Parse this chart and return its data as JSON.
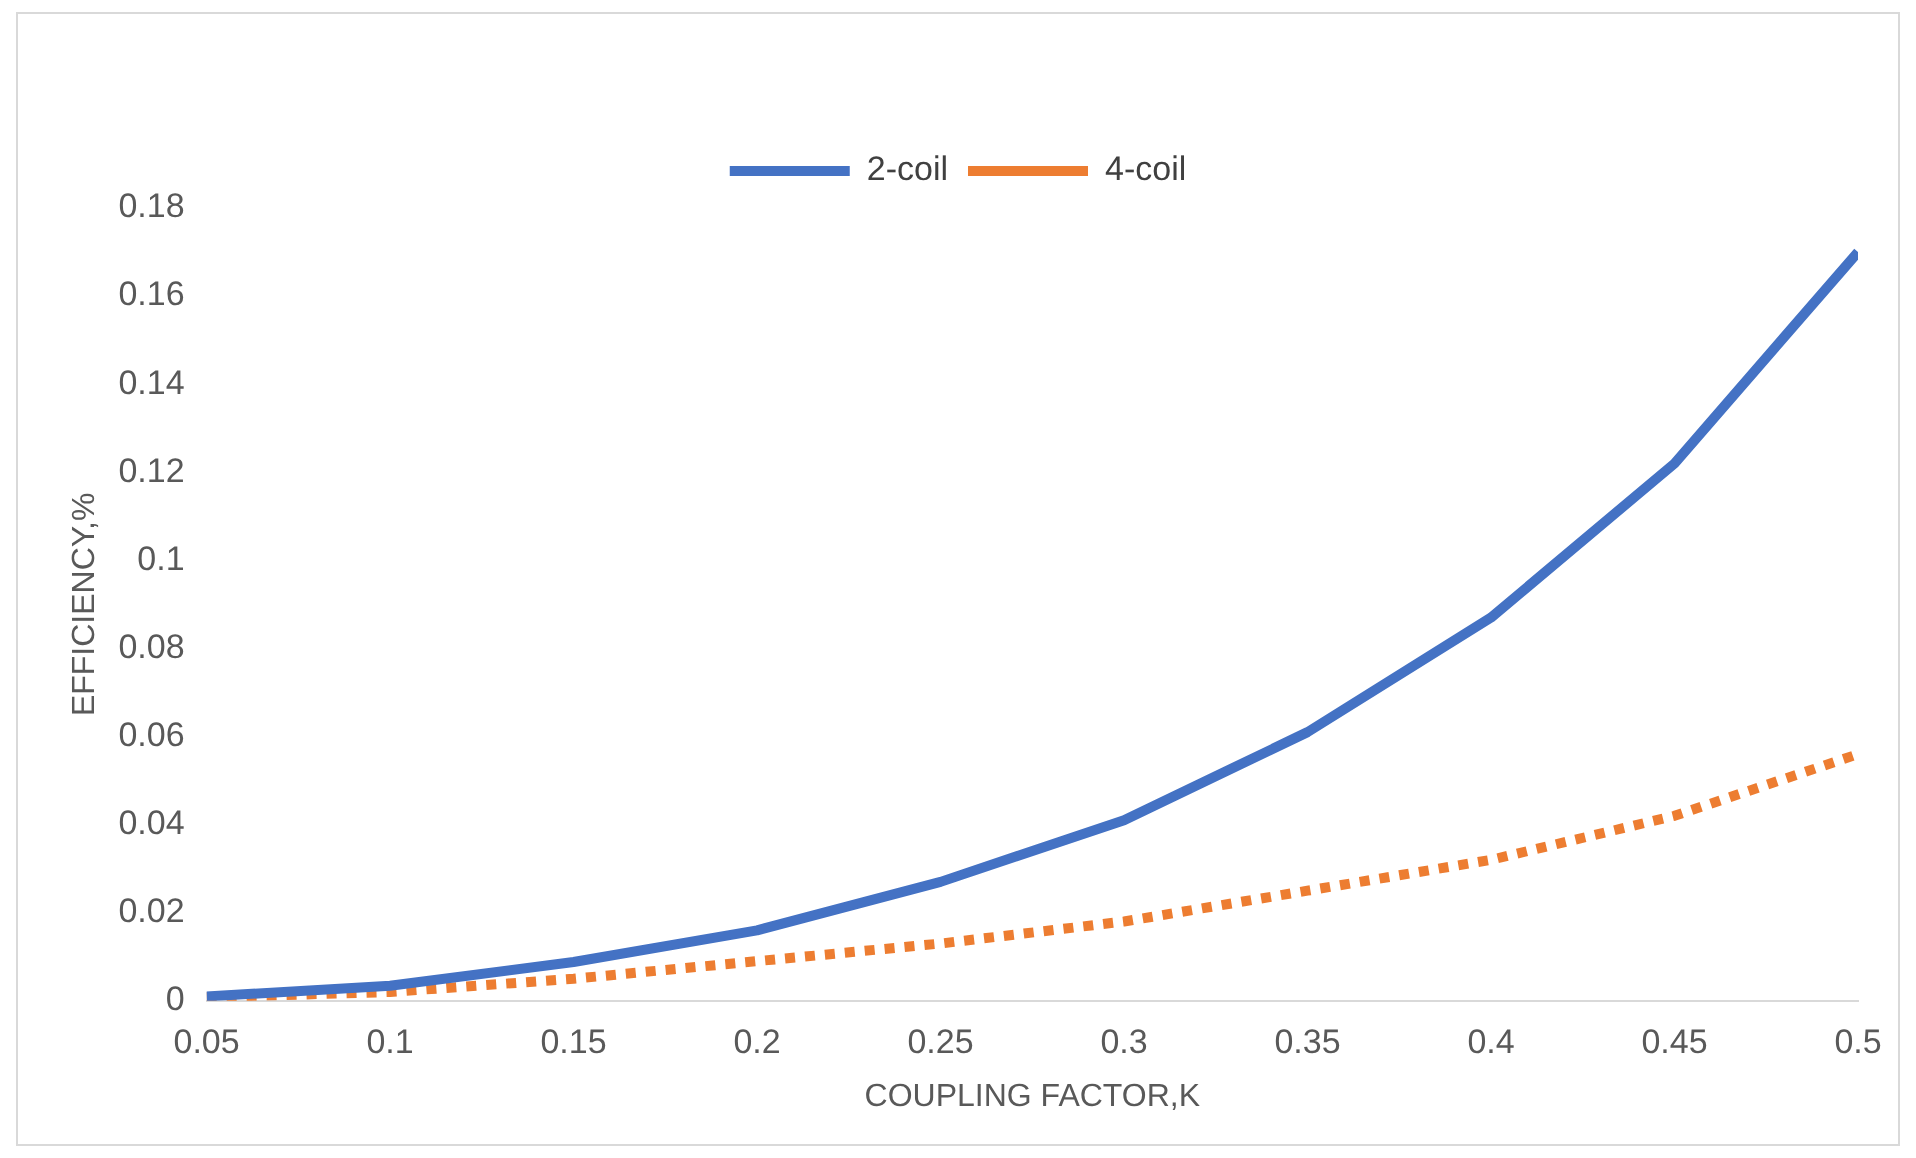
{
  "chart_data": {
    "type": "line",
    "xlabel": "COUPLING FACTOR,K",
    "ylabel": "EFFICIENCY,%",
    "x": [
      0.05,
      0.1,
      0.15,
      0.2,
      0.25,
      0.3,
      0.35,
      0.4,
      0.45,
      0.5
    ],
    "series": [
      {
        "name": "2-coil",
        "color": "#4472c4",
        "line_style": "solid",
        "values": [
          0.001,
          0.0034,
          0.0088,
          0.016,
          0.027,
          0.041,
          0.061,
          0.087,
          0.122,
          0.17
        ]
      },
      {
        "name": "4-coil",
        "color": "#ed7d31",
        "line_style": "dotted",
        "values": [
          0.0008,
          0.002,
          0.005,
          0.009,
          0.013,
          0.018,
          0.025,
          0.032,
          0.042,
          0.056
        ]
      }
    ],
    "xlim": [
      0.05,
      0.5
    ],
    "xticks": [
      0.05,
      0.1,
      0.15,
      0.2,
      0.25,
      0.3,
      0.35,
      0.4,
      0.45,
      0.5
    ],
    "ylim": [
      0,
      0.18
    ],
    "yticks": [
      0,
      0.02,
      0.04,
      0.06,
      0.08,
      0.1,
      0.12,
      0.14,
      0.16,
      0.18
    ],
    "grid": false,
    "legend": "top",
    "marker": "none"
  }
}
